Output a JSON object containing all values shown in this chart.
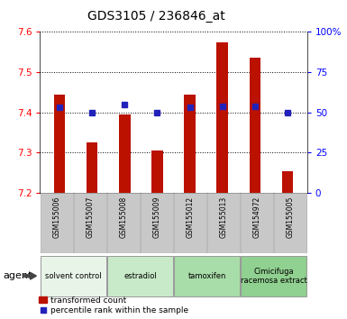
{
  "title": "GDS3105 / 236846_at",
  "samples": [
    "GSM155006",
    "GSM155007",
    "GSM155008",
    "GSM155009",
    "GSM155012",
    "GSM155013",
    "GSM154972",
    "GSM155005"
  ],
  "bar_values": [
    7.445,
    7.325,
    7.395,
    7.305,
    7.445,
    7.575,
    7.535,
    7.255
  ],
  "percentile_values": [
    53,
    50,
    55,
    50,
    53,
    54,
    54,
    50
  ],
  "ymin": 7.2,
  "ymax": 7.6,
  "yticks": [
    7.2,
    7.3,
    7.4,
    7.5,
    7.6
  ],
  "y2min": 0,
  "y2max": 100,
  "y2ticks": [
    0,
    25,
    50,
    75,
    100
  ],
  "y2ticklabels": [
    "0",
    "25",
    "50",
    "75",
    "100%"
  ],
  "bar_color": "#bb1100",
  "dot_color": "#2222bb",
  "agent_groups": [
    {
      "label": "solvent control",
      "start": 0,
      "end": 2,
      "color": "#e8f4e8"
    },
    {
      "label": "estradiol",
      "start": 2,
      "end": 4,
      "color": "#c8eac8"
    },
    {
      "label": "tamoxifen",
      "start": 4,
      "end": 6,
      "color": "#a8dca8"
    },
    {
      "label": "Cimicifuga\nracemosa extract",
      "start": 6,
      "end": 8,
      "color": "#90d090"
    }
  ],
  "legend_bar_label": "transformed count",
  "legend_dot_label": "percentile rank within the sample",
  "bar_width": 0.35,
  "title_fontsize": 10,
  "tick_fontsize": 7.5,
  "agent_label": "agent",
  "bg_color": "#ffffff",
  "sample_bg_color": "#c8c8c8"
}
